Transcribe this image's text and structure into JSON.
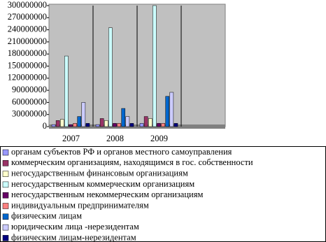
{
  "chart_data": {
    "type": "bar",
    "categories": [
      "2007",
      "2008",
      "2009",
      null
    ],
    "series": [
      {
        "name": "органам субъектов РФ и органов местного самоуправления",
        "color": "#9999ff",
        "values": [
          5000000,
          5000000,
          8000000,
          null
        ]
      },
      {
        "name": "коммерческим организациям, находящимся в гос. собственности",
        "color": "#993366",
        "values": [
          15000000,
          20000000,
          25000000,
          null
        ]
      },
      {
        "name": "негосударственным финансовым организациям",
        "color": "#ffffcc",
        "values": [
          18000000,
          15000000,
          20000000,
          null
        ]
      },
      {
        "name": "негосударственным коммерческим организациям",
        "color": "#ccffff",
        "values": [
          175000000,
          245000000,
          300000000,
          null
        ]
      },
      {
        "name": "негосударственным некоммерческим организациям",
        "color": "#660066",
        "values": [
          5000000,
          8000000,
          8000000,
          null
        ]
      },
      {
        "name": "индивидуальным предпринимателям",
        "color": "#ff8080",
        "values": [
          8000000,
          8000000,
          8000000,
          null
        ]
      },
      {
        "name": "физическим лицам",
        "color": "#0066cc",
        "values": [
          25000000,
          45000000,
          75000000,
          null
        ]
      },
      {
        "name": "юридическим лица -нерезидентам",
        "color": "#ccccff",
        "values": [
          60000000,
          25000000,
          85000000,
          null
        ]
      },
      {
        "name": "физическим лицам-нерезидентам",
        "color": "#000080",
        "values": [
          8000000,
          8000000,
          8000000,
          null
        ]
      }
    ],
    "ylim": [
      0,
      300000000
    ],
    "yticks": [
      0,
      30000000,
      60000000,
      90000000,
      120000000,
      150000000,
      180000000,
      210000000,
      240000000,
      270000000,
      300000000
    ]
  }
}
